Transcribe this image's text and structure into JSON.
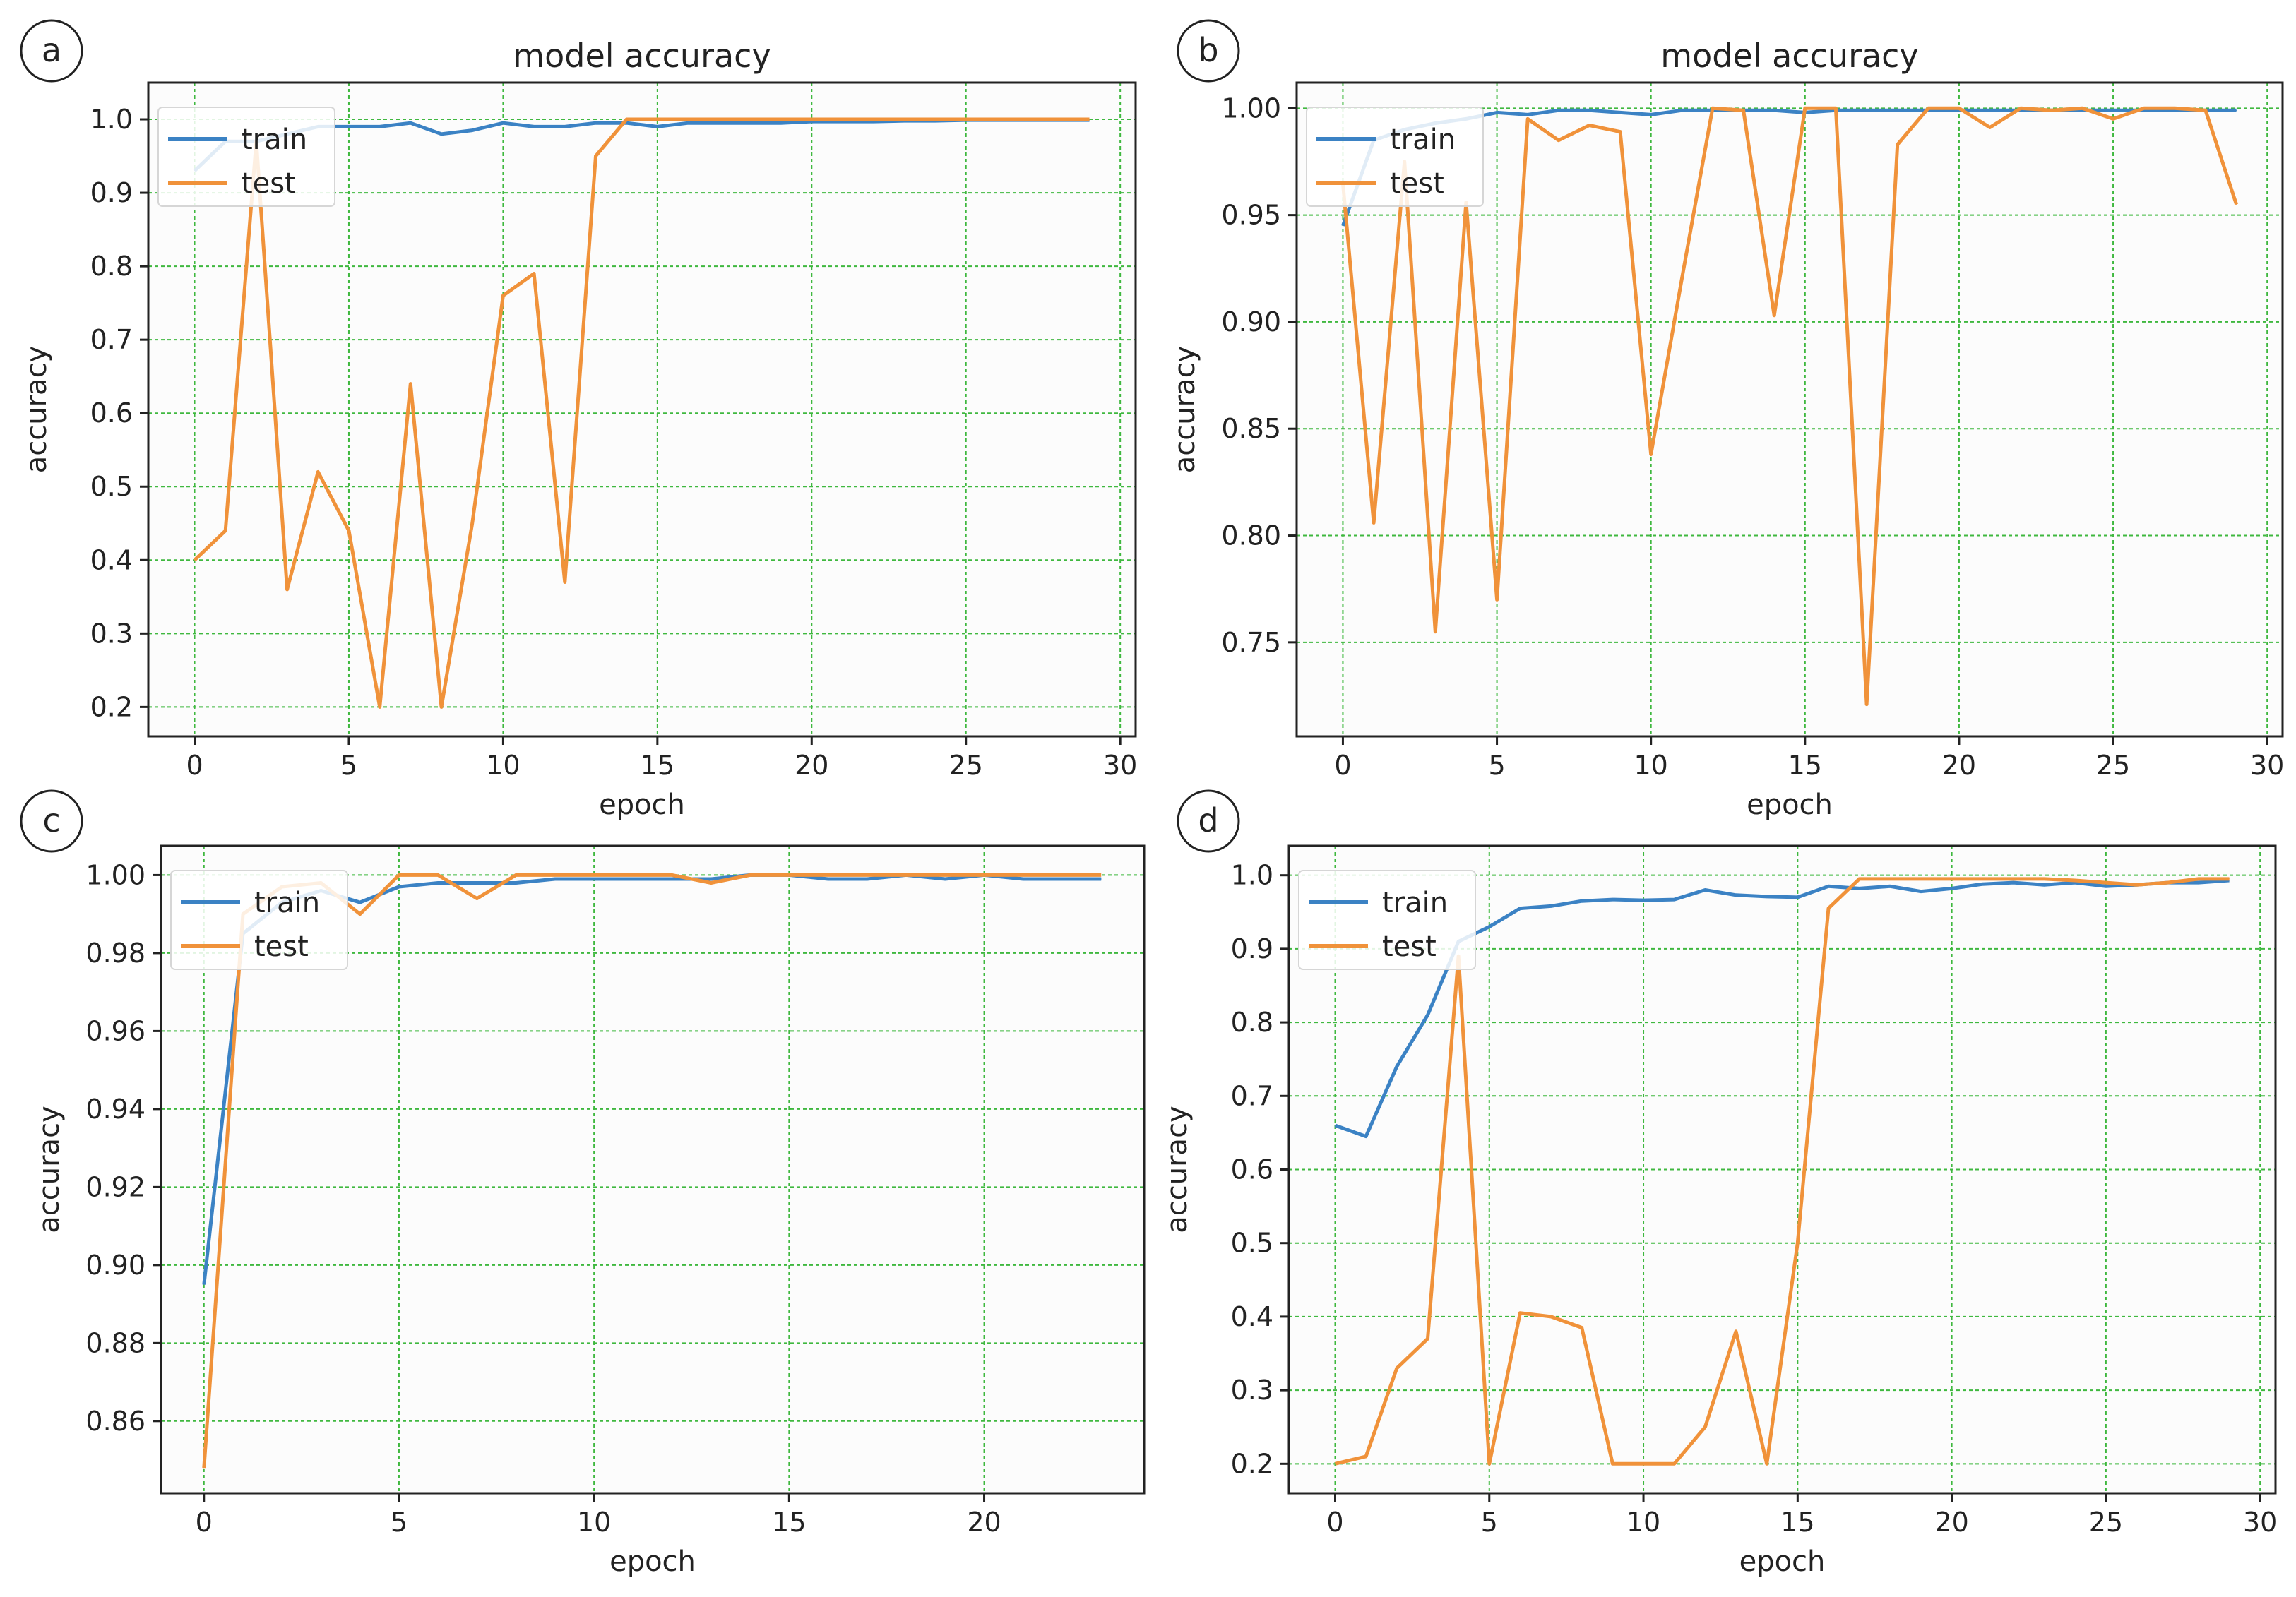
{
  "chart_data": [
    {
      "type": "line",
      "panel_label": "a",
      "title": "model accuracy",
      "xlabel": "epoch",
      "ylabel": "accuracy",
      "xlim": [
        -1.5,
        30.5
      ],
      "ylim": [
        0.16,
        1.05
      ],
      "xticks": [
        0,
        5,
        10,
        15,
        20,
        25,
        30
      ],
      "xtick_labels": [
        "0",
        "5",
        "10",
        "15",
        "20",
        "25",
        "30"
      ],
      "yticks": [
        0.2,
        0.3,
        0.4,
        0.5,
        0.6,
        0.7,
        0.8,
        0.9,
        1.0
      ],
      "ytick_labels": [
        "0.2",
        "0.3",
        "0.4",
        "0.5",
        "0.6",
        "0.7",
        "0.8",
        "0.9",
        "1.0"
      ],
      "grid": true,
      "legend": "upper-left",
      "x": [
        0,
        1,
        2,
        3,
        4,
        5,
        6,
        7,
        8,
        9,
        10,
        11,
        12,
        13,
        14,
        15,
        16,
        17,
        18,
        19,
        20,
        21,
        22,
        23,
        24,
        25,
        26,
        27,
        28,
        29
      ],
      "series": [
        {
          "name": "train",
          "color": "#3b82c4",
          "values": [
            0.93,
            0.97,
            0.97,
            0.98,
            0.99,
            0.99,
            0.99,
            0.995,
            0.98,
            0.985,
            0.995,
            0.99,
            0.99,
            0.995,
            0.995,
            0.99,
            0.995,
            0.995,
            0.995,
            0.995,
            0.997,
            0.997,
            0.997,
            0.998,
            0.998,
            0.999,
            0.999,
            0.999,
            0.999,
            0.999
          ]
        },
        {
          "name": "test",
          "color": "#f0923a",
          "values": [
            0.4,
            0.44,
            0.97,
            0.36,
            0.52,
            0.44,
            0.2,
            0.64,
            0.2,
            0.45,
            0.76,
            0.79,
            0.37,
            0.95,
            1.0,
            1.0,
            1.0,
            1.0,
            1.0,
            1.0,
            1.0,
            1.0,
            1.0,
            1.0,
            1.0,
            1.0,
            1.0,
            1.0,
            1.0,
            1.0
          ]
        }
      ]
    },
    {
      "type": "line",
      "panel_label": "b",
      "title": "model accuracy",
      "xlabel": "epoch",
      "ylabel": "accuracy",
      "xlim": [
        -1.5,
        30.5
      ],
      "ylim": [
        0.706,
        1.012
      ],
      "xticks": [
        0,
        5,
        10,
        15,
        20,
        25,
        30
      ],
      "xtick_labels": [
        "0",
        "5",
        "10",
        "15",
        "20",
        "25",
        "30"
      ],
      "yticks": [
        0.75,
        0.8,
        0.85,
        0.9,
        0.95,
        1.0
      ],
      "ytick_labels": [
        "0.75",
        "0.80",
        "0.85",
        "0.90",
        "0.95",
        "1.00"
      ],
      "grid": true,
      "legend": "upper-left",
      "x": [
        0,
        1,
        2,
        3,
        4,
        5,
        6,
        7,
        8,
        9,
        10,
        11,
        12,
        13,
        14,
        15,
        16,
        17,
        18,
        19,
        20,
        21,
        22,
        23,
        24,
        25,
        26,
        27,
        28,
        29
      ],
      "series": [
        {
          "name": "train",
          "color": "#3b82c4",
          "values": [
            0.945,
            0.985,
            0.99,
            0.993,
            0.995,
            0.998,
            0.997,
            0.999,
            0.999,
            0.998,
            0.997,
            0.999,
            0.999,
            0.999,
            0.999,
            0.998,
            0.999,
            0.999,
            0.999,
            0.999,
            0.999,
            0.999,
            0.999,
            0.999,
            0.999,
            0.999,
            0.999,
            0.999,
            0.999,
            0.999
          ]
        },
        {
          "name": "test",
          "color": "#f0923a",
          "values": [
            0.965,
            0.806,
            0.975,
            0.755,
            0.956,
            0.77,
            0.995,
            0.985,
            0.992,
            0.989,
            0.838,
            0.92,
            1.0,
            0.999,
            0.903,
            1.0,
            1.0,
            0.721,
            0.983,
            1.0,
            1.0,
            0.991,
            1.0,
            0.999,
            1.0,
            0.995,
            1.0,
            1.0,
            0.999,
            0.955
          ]
        }
      ]
    },
    {
      "type": "line",
      "panel_label": "c",
      "title": "",
      "xlabel": "epoch",
      "ylabel": "accuracy",
      "xlim": [
        -1.1,
        24.1
      ],
      "ylim": [
        0.8415,
        1.0075
      ],
      "xticks": [
        0,
        5,
        10,
        15,
        20
      ],
      "xtick_labels": [
        "0",
        "5",
        "10",
        "15",
        "20"
      ],
      "yticks": [
        0.86,
        0.88,
        0.9,
        0.92,
        0.94,
        0.96,
        0.98,
        1.0
      ],
      "ytick_labels": [
        "0.86",
        "0.88",
        "0.90",
        "0.92",
        "0.94",
        "0.96",
        "0.98",
        "1.00"
      ],
      "grid": true,
      "legend": "upper-left",
      "x": [
        0,
        1,
        2,
        3,
        4,
        5,
        6,
        7,
        8,
        9,
        10,
        11,
        12,
        13,
        14,
        15,
        16,
        17,
        18,
        19,
        20,
        21,
        22,
        23
      ],
      "series": [
        {
          "name": "train",
          "color": "#3b82c4",
          "values": [
            0.895,
            0.985,
            0.993,
            0.996,
            0.993,
            0.997,
            0.998,
            0.998,
            0.998,
            0.999,
            0.999,
            0.999,
            0.999,
            0.999,
            1.0,
            1.0,
            0.999,
            0.999,
            1.0,
            0.999,
            1.0,
            0.999,
            0.999,
            0.999
          ]
        },
        {
          "name": "test",
          "color": "#f0923a",
          "values": [
            0.848,
            0.99,
            0.997,
            0.998,
            0.99,
            1.0,
            1.0,
            0.994,
            1.0,
            1.0,
            1.0,
            1.0,
            1.0,
            0.998,
            1.0,
            1.0,
            1.0,
            1.0,
            1.0,
            1.0,
            1.0,
            1.0,
            1.0,
            1.0
          ]
        }
      ]
    },
    {
      "type": "line",
      "panel_label": "d",
      "title": "",
      "xlabel": "epoch",
      "ylabel": "accuracy",
      "xlim": [
        -1.5,
        30.5
      ],
      "ylim": [
        0.16,
        1.04
      ],
      "xticks": [
        0,
        5,
        10,
        15,
        20,
        25,
        30
      ],
      "xtick_labels": [
        "0",
        "5",
        "10",
        "15",
        "20",
        "25",
        "30"
      ],
      "yticks": [
        0.2,
        0.3,
        0.4,
        0.5,
        0.6,
        0.7,
        0.8,
        0.9,
        1.0
      ],
      "ytick_labels": [
        "0.2",
        "0.3",
        "0.4",
        "0.5",
        "0.6",
        "0.7",
        "0.8",
        "0.9",
        "1.0"
      ],
      "grid": true,
      "legend": "upper-left",
      "x": [
        0,
        1,
        2,
        3,
        4,
        5,
        6,
        7,
        8,
        9,
        10,
        11,
        12,
        13,
        14,
        15,
        16,
        17,
        18,
        19,
        20,
        21,
        22,
        23,
        24,
        25,
        26,
        27,
        28,
        29
      ],
      "series": [
        {
          "name": "train",
          "color": "#3b82c4",
          "values": [
            0.66,
            0.645,
            0.74,
            0.81,
            0.91,
            0.93,
            0.955,
            0.958,
            0.965,
            0.967,
            0.966,
            0.967,
            0.98,
            0.973,
            0.971,
            0.97,
            0.985,
            0.982,
            0.985,
            0.978,
            0.982,
            0.988,
            0.99,
            0.987,
            0.99,
            0.985,
            0.987,
            0.99,
            0.99,
            0.993
          ]
        },
        {
          "name": "test",
          "color": "#f0923a",
          "values": [
            0.2,
            0.21,
            0.33,
            0.37,
            0.89,
            0.2,
            0.405,
            0.4,
            0.385,
            0.2,
            0.2,
            0.2,
            0.25,
            0.38,
            0.2,
            0.5,
            0.955,
            0.995,
            0.995,
            0.995,
            0.995,
            0.995,
            0.995,
            0.995,
            0.993,
            0.99,
            0.987,
            0.99,
            0.995,
            0.995
          ]
        }
      ]
    }
  ]
}
